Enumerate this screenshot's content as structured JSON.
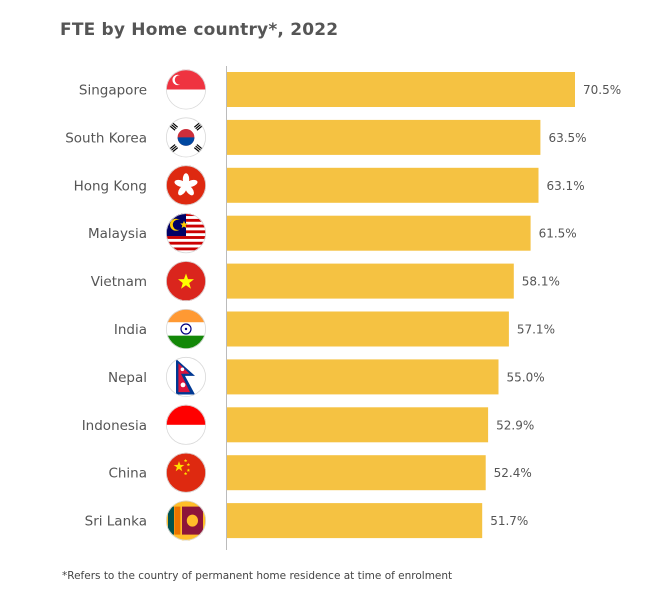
{
  "title": "FTE by Home country*, 2022",
  "footnote": "*Refers to the country of permanent home residence at time of enrolment",
  "colors": {
    "bar": "#F5C242",
    "axis": "#bbbbbb",
    "text": "#555555"
  },
  "chart_data": {
    "type": "bar",
    "orientation": "horizontal",
    "title": "FTE by Home country*, 2022",
    "categories": [
      "Singapore",
      "South Korea",
      "Hong Kong",
      "Malaysia",
      "Vietnam",
      "India",
      "Nepal",
      "Indonesia",
      "China",
      "Sri Lanka"
    ],
    "values": [
      70.5,
      63.5,
      63.1,
      61.5,
      58.1,
      57.1,
      55.0,
      52.9,
      52.4,
      51.7
    ],
    "value_labels": [
      "70.5%",
      "63.5%",
      "63.1%",
      "61.5%",
      "58.1%",
      "57.1%",
      "55.0%",
      "52.9%",
      "52.4%",
      "51.7%"
    ],
    "flags": [
      "singapore-flag-icon",
      "south-korea-flag-icon",
      "hong-kong-flag-icon",
      "malaysia-flag-icon",
      "vietnam-flag-icon",
      "india-flag-icon",
      "nepal-flag-icon",
      "indonesia-flag-icon",
      "china-flag-icon",
      "sri-lanka-flag-icon"
    ],
    "xlim": [
      0,
      70.5
    ],
    "grid": false,
    "legend": "none"
  }
}
